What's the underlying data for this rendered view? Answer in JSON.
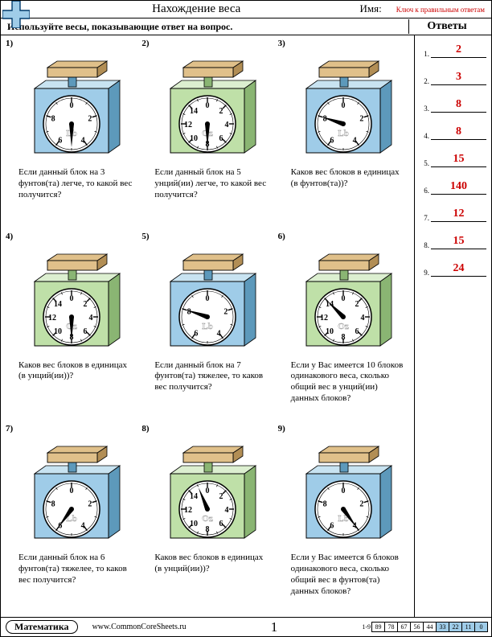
{
  "header": {
    "title": "Нахождение веса",
    "name_label": "Имя:",
    "key_label": "Ключ к правильным ответам"
  },
  "instruction": "Используйте весы, показывающие ответ на вопрос.",
  "answers_title": "Ответы",
  "plus_colors": {
    "fill": "#9fcce8",
    "stroke": "#003a6b"
  },
  "scale_palette": {
    "blue": {
      "front": "#9fcce8",
      "side": "#5d99bb",
      "top": "#c8e3f1",
      "pan": "#e0c08a",
      "panSide": "#b28e55"
    },
    "green": {
      "front": "#bfe0a8",
      "side": "#8ab573",
      "top": "#dcefd0",
      "pan": "#e0c08a",
      "panSide": "#b28e55"
    }
  },
  "dial_style": {
    "radius": 35,
    "face": "#ffffff",
    "ring": "#000000",
    "tick_major_ticks_at_every": 2,
    "tick_count": 16,
    "label_fontsize": 10,
    "unit_fontsize": 10,
    "needle_color": "#000000"
  },
  "problems": [
    {
      "n": 1,
      "color": "blue",
      "max": 10,
      "step": 2,
      "unit": "Lb",
      "value": 5,
      "q": "Если данный блок на 3 фунтов(та) легче, то какой вес получится?"
    },
    {
      "n": 2,
      "color": "green",
      "max": 16,
      "step": 2,
      "unit": "Oz",
      "value": 8,
      "q": "Если данный блок на 5 унций(ии) легче, то какой вес получится?"
    },
    {
      "n": 3,
      "color": "blue",
      "max": 10,
      "step": 2,
      "unit": "Lb",
      "value": 8,
      "q": "Каков вес блоков в единицах (в фунтов(та))?"
    },
    {
      "n": 4,
      "color": "green",
      "max": 16,
      "step": 2,
      "unit": "Oz",
      "value": 8,
      "q": "Каков вес блоков в единицах (в унций(ии))?"
    },
    {
      "n": 5,
      "color": "blue",
      "max": 10,
      "step": 2,
      "unit": "Lb",
      "value": 8,
      "q": "Если данный блок на 7 фунтов(та) тяжелее, то каков вес получится?"
    },
    {
      "n": 6,
      "color": "green",
      "max": 16,
      "step": 2,
      "unit": "Oz",
      "value": 14,
      "q": "Если у Вас имеется 10 блоков одинакового веса, сколько общий вес в унций(ии) данных блоков?"
    },
    {
      "n": 7,
      "color": "blue",
      "max": 10,
      "step": 2,
      "unit": "Lb",
      "value": 6,
      "q": "Если данный блок на 6 фунтов(та) тяжелее, то каков вес получится?"
    },
    {
      "n": 8,
      "color": "green",
      "max": 16,
      "step": 2,
      "unit": "Oz",
      "value": 15,
      "q": "Каков вес блоков в единицах (в унций(ии))?"
    },
    {
      "n": 9,
      "color": "blue",
      "max": 10,
      "step": 2,
      "unit": "Lb",
      "value": 4,
      "q": "Если у Вас имеется 6 блоков одинакового веса, сколько общий вес в фунтов(та) данных блоков?"
    }
  ],
  "answers": [
    "2",
    "3",
    "8",
    "8",
    "15",
    "140",
    "12",
    "15",
    "24"
  ],
  "footer": {
    "subject": "Математика",
    "site": "www.CommonCoreSheets.ru",
    "page": "1",
    "range": "1-9",
    "scores": [
      "89",
      "78",
      "67",
      "56",
      "44",
      "33",
      "22",
      "11",
      "0"
    ],
    "score_highlight_from_index": 5,
    "score_highlight_bg": "#9fcce8"
  }
}
